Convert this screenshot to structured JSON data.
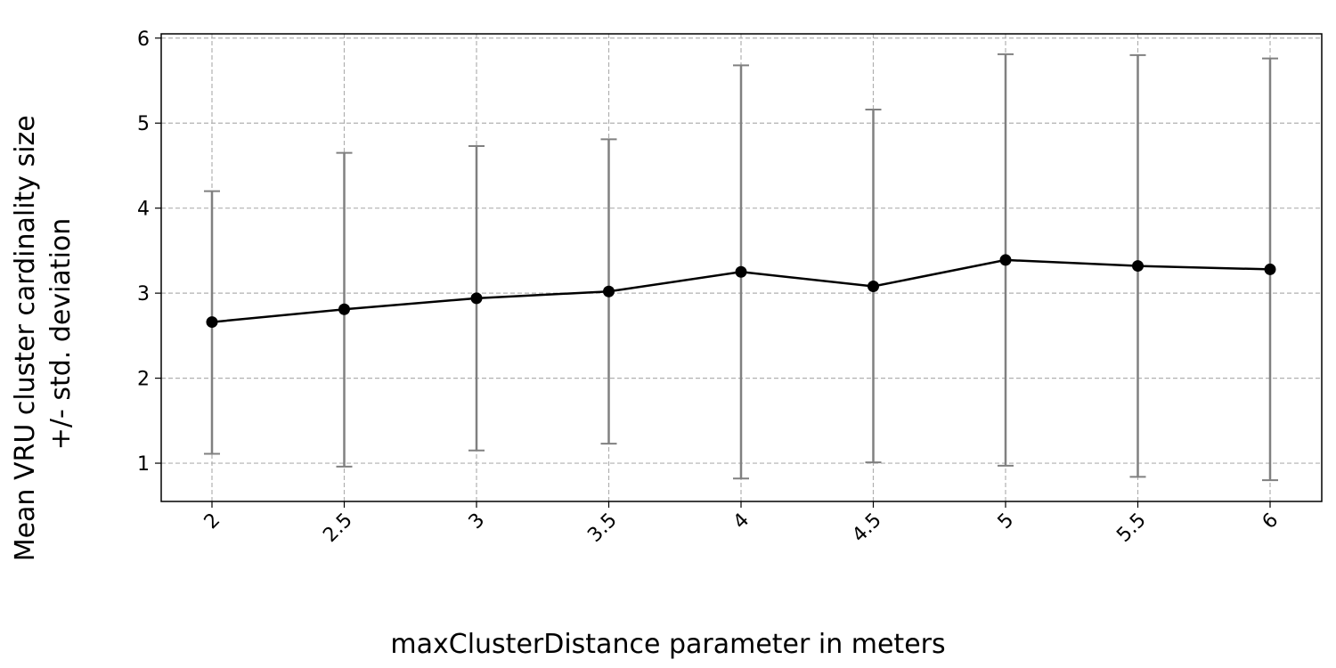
{
  "chart_data": {
    "type": "line",
    "title": "",
    "xlabel": "maxClusterDistance parameter in meters",
    "ylabel_lines": [
      "Mean VRU cluster cardinality size",
      "+/- std. deviation"
    ],
    "x": [
      "2",
      "2.5",
      "3",
      "3.5",
      "4",
      "4.5",
      "5",
      "5.5",
      "6"
    ],
    "series": [
      {
        "mean": [
          2.66,
          2.81,
          2.94,
          3.02,
          3.25,
          3.08,
          3.39,
          3.32,
          3.28
        ],
        "lower": [
          1.11,
          0.96,
          1.15,
          1.23,
          0.82,
          1.01,
          0.97,
          0.84,
          0.8
        ],
        "upper": [
          4.2,
          4.65,
          4.73,
          4.81,
          5.68,
          5.16,
          5.81,
          5.8,
          5.76
        ]
      }
    ],
    "ylim": [
      0.55,
      6.05
    ],
    "yticks": [
      "1",
      "2",
      "3",
      "4",
      "5",
      "6"
    ],
    "grid": true,
    "colors": {
      "line": "#000000",
      "marker": "#000000",
      "errorbar": "#808080",
      "grid": "#b0b0b0"
    }
  }
}
